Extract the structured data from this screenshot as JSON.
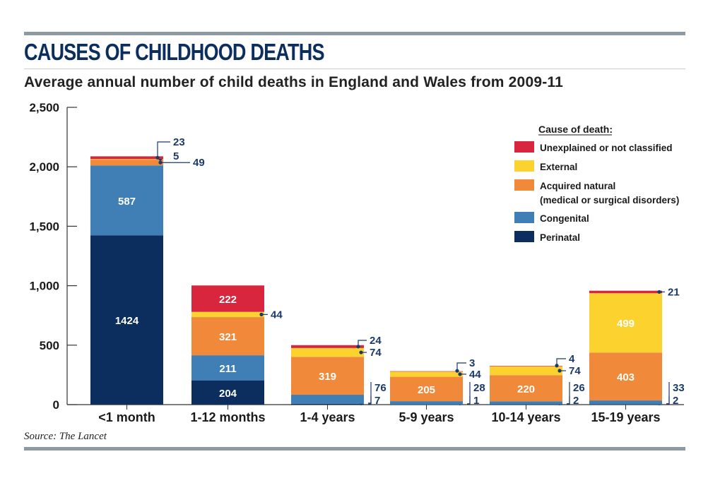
{
  "header": {
    "title": "CAUSES OF CHILDHOOD DEATHS",
    "subtitle": "Average annual number of child deaths in England and Wales from 2009-11"
  },
  "source": "Source: The Lancet",
  "chart_data": {
    "type": "bar",
    "stacked": true,
    "categories": [
      "<1 month",
      "1-12 months",
      "1-4 years",
      "5-9 years",
      "10-14 years",
      "15-19 years"
    ],
    "ylim": [
      0,
      2500
    ],
    "yticks": [
      0,
      500,
      1000,
      1500,
      2000,
      2500
    ],
    "ytick_labels": [
      "0",
      "500",
      "1,000",
      "1,500",
      "2,000",
      "2,500"
    ],
    "series": [
      {
        "key": "perinatal",
        "name": "Perinatal",
        "color": "#0b2e5e",
        "values": [
          1424,
          204,
          7,
          1,
          2,
          2
        ]
      },
      {
        "key": "congenital",
        "name": "Congenital",
        "color": "#3f7fb5",
        "values": [
          587,
          211,
          76,
          28,
          26,
          33
        ]
      },
      {
        "key": "acquired",
        "name": "Acquired natural",
        "name_line2": "(medical or surgical disorders)",
        "color": "#f08a3a",
        "values": [
          49,
          321,
          319,
          205,
          220,
          403
        ]
      },
      {
        "key": "external",
        "name": "External",
        "color": "#fcd22f",
        "values": [
          5,
          44,
          74,
          44,
          74,
          499
        ]
      },
      {
        "key": "unexplained",
        "name": "Unexplained or not classified",
        "color": "#d7263d",
        "values": [
          23,
          222,
          24,
          3,
          4,
          21
        ]
      }
    ],
    "legend": {
      "title": "Cause of death:",
      "placement": "top-right"
    },
    "grid": false
  }
}
